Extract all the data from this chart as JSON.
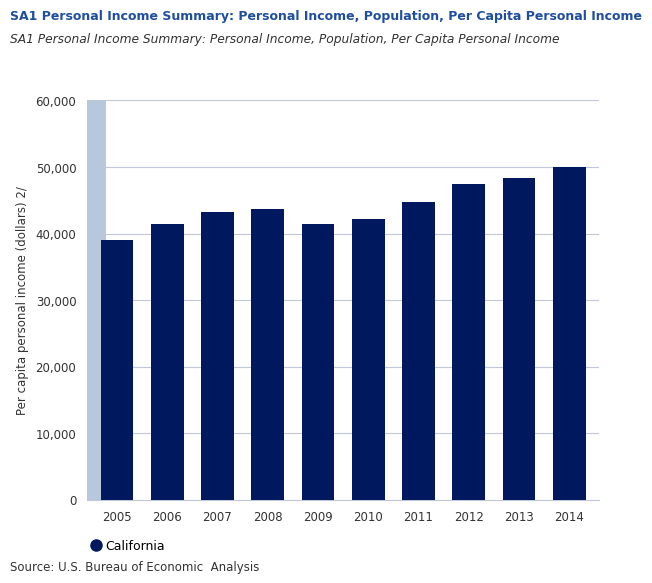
{
  "title": "SA1 Personal Income Summary: Personal Income, Population, Per Capita Personal Income",
  "subtitle": "SA1 Personal Income Summary: Personal Income, Population, Per Capita Personal Income",
  "years": [
    2005,
    2006,
    2007,
    2008,
    2009,
    2010,
    2011,
    2012,
    2013,
    2014
  ],
  "values": [
    39000,
    41500,
    43300,
    43700,
    41500,
    42200,
    44700,
    47500,
    48400,
    50000
  ],
  "bar_color": "#00185E",
  "ylabel": "Per capita personal income (dollars) 2/",
  "ylim": [
    0,
    60000
  ],
  "yticks": [
    0,
    10000,
    20000,
    30000,
    40000,
    50000,
    60000
  ],
  "legend_label": "California",
  "legend_dot_color": "#00185E",
  "source_text": "Source: U.S. Bureau of Economic  Analysis",
  "title_color": "#1F4E9E",
  "background_color": "#FFFFFF",
  "plot_bg_color": "#FFFFFF",
  "grid_color": "#C0C8D8",
  "axis_strip_color": "#B8C8DC",
  "title_fontsize": 9.0,
  "subtitle_fontsize": 8.8,
  "ylabel_fontsize": 8.5,
  "tick_fontsize": 8.5,
  "legend_fontsize": 9,
  "source_fontsize": 8.5
}
